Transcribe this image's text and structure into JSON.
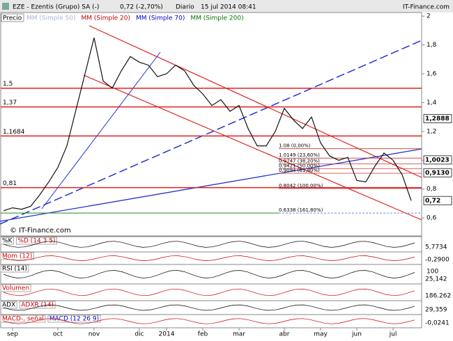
{
  "header": {
    "ticker": "EZE - Ezentis (Grupo) SA (-)",
    "quote": "0,72 (-2,70%)",
    "period": "Diario",
    "date": "15 jul 2014 08:41",
    "site": "IT-Finance.com"
  },
  "chart_data": {
    "type": "line",
    "y_label": "Precio",
    "color": "#111111",
    "categories": [
      null,
      "sep",
      null,
      null,
      null,
      null,
      "oct",
      null,
      null,
      null,
      "nov",
      null,
      null,
      null,
      null,
      "dic",
      null,
      null,
      "2014",
      null,
      null,
      null,
      "feb",
      null,
      null,
      null,
      "mar",
      null,
      null,
      null,
      null,
      "abr",
      null,
      null,
      null,
      "may",
      null,
      null,
      null,
      "jun",
      null,
      null,
      null,
      "jul",
      null,
      null
    ],
    "values": [
      0.65,
      0.67,
      0.66,
      0.68,
      0.76,
      0.85,
      0.95,
      1.1,
      1.35,
      1.6,
      1.85,
      1.55,
      1.5,
      1.62,
      1.72,
      1.68,
      1.66,
      1.58,
      1.6,
      1.66,
      1.62,
      1.52,
      1.46,
      1.38,
      1.42,
      1.34,
      1.38,
      1.22,
      1.1,
      1.1,
      1.2,
      1.36,
      1.28,
      1.22,
      1.3,
      1.12,
      1.03,
      1.0,
      1.02,
      0.86,
      0.85,
      0.96,
      1.05,
      1.0,
      0.9,
      0.72
    ],
    "ylim": [
      0.475,
      2.025
    ],
    "yticks": [
      {
        "value": 0.6,
        "label": "0,6"
      },
      {
        "value": 0.8,
        "label": "0,8"
      },
      1,
      {
        "value": 1.2,
        "label": "1,2"
      },
      {
        "value": 1.4,
        "label": "1,4"
      },
      {
        "value": 1.6,
        "label": "1,6"
      },
      {
        "value": 1.8,
        "label": "1,8"
      },
      2
    ],
    "grid": false,
    "moving_averages": [
      {
        "name": "MM (Simple 50)",
        "color": "#aab4d8"
      },
      {
        "name": "MM (Simple 20)",
        "color": "#cc0000"
      },
      {
        "name": "MM (Simple 70)",
        "color": "#0000cc"
      },
      {
        "name": "MM (Simple 200)",
        "color": "#007700"
      }
    ],
    "levels": [
      {
        "value": 1.5,
        "label": "1,5"
      },
      {
        "value": 1.37,
        "label": "1,37"
      },
      {
        "value": 1.1684,
        "label": "1,1684"
      },
      {
        "value": 0.81,
        "label": "0,81"
      }
    ],
    "price_tags": [
      {
        "value": 1.2888,
        "label": "1,2888"
      },
      {
        "value": 1.0023,
        "label": "1,0023"
      },
      {
        "value": 0.913,
        "label": "0,9130"
      },
      {
        "value": 0.72,
        "label": "0,72"
      }
    ],
    "fibonacci": [
      {
        "value": 1.08,
        "label": "1.08 (0,00%)"
      },
      {
        "value": 1.0149,
        "label": "1.0149 (23,60%)"
      },
      {
        "value": 0.9747,
        "label": "0.9747 (38,20%)"
      },
      {
        "value": 0.9421,
        "label": "0.9421 (50,00%)"
      },
      {
        "value": 0.9094,
        "label": "0.9094 (61,80%)"
      },
      {
        "value": 0.8042,
        "label": "0.8042 (100,00%)"
      },
      {
        "value": 0.6338,
        "label": "0.6338 (161,80%)"
      }
    ],
    "watermark": "© IT-Finance.com"
  },
  "panels": [
    {
      "labels": [
        "%K",
        "%D (14 3 5)"
      ],
      "last": "5,7734"
    },
    {
      "labels": [
        "Mom (12)"
      ],
      "last": "-0,2900"
    },
    {
      "labels": [
        "RSI (14)"
      ],
      "last": "25,142",
      "top": "100"
    },
    {
      "labels": [
        "Volumen"
      ],
      "last": "186.262"
    },
    {
      "labels": [
        "ADX",
        "ADXR (14)"
      ],
      "last": "29,359"
    },
    {
      "labels": [
        "MACD-, señal",
        "MACD (12 26 9)"
      ],
      "last": "-0,0241"
    }
  ]
}
